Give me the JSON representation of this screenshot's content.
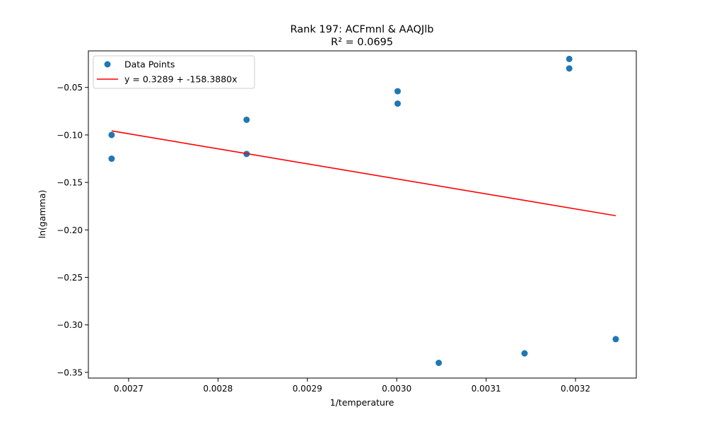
{
  "chart_data": {
    "type": "scatter",
    "title": "Rank 197: ACFmnl & AAQJlb",
    "subtitle": "R² = 0.0695",
    "xlabel": "1/temperature",
    "ylabel": "ln(gamma)",
    "xlim": [
      0.002655,
      0.003268
    ],
    "ylim": [
      -0.356,
      -0.0115
    ],
    "xticks": [
      0.0027,
      0.0028,
      0.0029,
      0.003,
      0.0031,
      0.0032
    ],
    "xtick_labels": [
      "0.0027",
      "0.0028",
      "0.0029",
      "0.0030",
      "0.0031",
      "0.0032"
    ],
    "yticks": [
      -0.05,
      -0.1,
      -0.15,
      -0.2,
      -0.25,
      -0.3,
      -0.35
    ],
    "ytick_labels": [
      "−0.05",
      "−0.10",
      "−0.15",
      "−0.20",
      "−0.25",
      "−0.30",
      "−0.35"
    ],
    "grid": false,
    "legend_position": "top-left",
    "series": [
      {
        "name": "Data Points",
        "kind": "scatter",
        "color": "#1f77b4",
        "points": [
          {
            "x": 0.002681,
            "y": -0.1
          },
          {
            "x": 0.002681,
            "y": -0.125
          },
          {
            "x": 0.002832,
            "y": -0.084
          },
          {
            "x": 0.002832,
            "y": -0.12
          },
          {
            "x": 0.003001,
            "y": -0.054
          },
          {
            "x": 0.003001,
            "y": -0.067
          },
          {
            "x": 0.003047,
            "y": -0.34
          },
          {
            "x": 0.003143,
            "y": -0.33
          },
          {
            "x": 0.003193,
            "y": -0.02
          },
          {
            "x": 0.003193,
            "y": -0.03
          },
          {
            "x": 0.003245,
            "y": -0.315
          }
        ]
      },
      {
        "name": "y = 0.3289 + -158.3880x",
        "kind": "line",
        "color": "#ff0000",
        "intercept": 0.3289,
        "slope": -158.388,
        "x_range": [
          0.002681,
          0.003245
        ]
      }
    ]
  }
}
